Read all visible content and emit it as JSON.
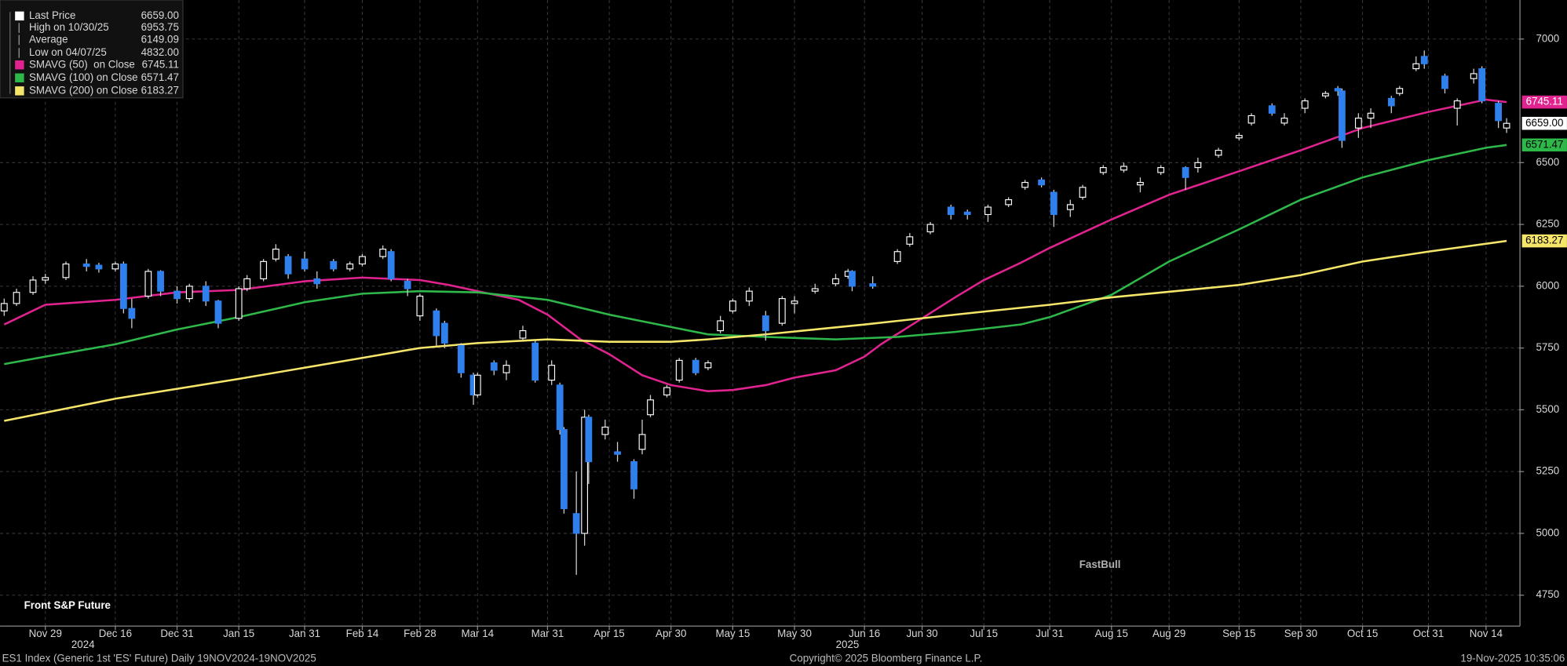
{
  "chart_data": {
    "type": "candlestick",
    "title": "Front S&P Future",
    "xlim": [
      "2024-11-18",
      "2025-11-22"
    ],
    "xticks": [
      {
        "value": "2024-11-29",
        "label": "Nov 29"
      },
      {
        "value": "2024-12-16",
        "label": "Dec 16"
      },
      {
        "value": "2024-12-31",
        "label": "Dec 31"
      },
      {
        "value": "2025-01-15",
        "label": "Jan 15"
      },
      {
        "value": "2025-01-31",
        "label": "Jan 31"
      },
      {
        "value": "2025-02-14",
        "label": "Feb 14"
      },
      {
        "value": "2025-02-28",
        "label": "Feb 28"
      },
      {
        "value": "2025-03-14",
        "label": "Mar 14"
      },
      {
        "value": "2025-03-31",
        "label": "Mar 31"
      },
      {
        "value": "2025-04-15",
        "label": "Apr 15"
      },
      {
        "value": "2025-04-30",
        "label": "Apr 30"
      },
      {
        "value": "2025-05-15",
        "label": "May 15"
      },
      {
        "value": "2025-05-30",
        "label": "May 30"
      },
      {
        "value": "2025-06-16",
        "label": "Jun 16"
      },
      {
        "value": "2025-06-30",
        "label": "Jun 30"
      },
      {
        "value": "2025-07-15",
        "label": "Jul 15"
      },
      {
        "value": "2025-07-31",
        "label": "Jul 31"
      },
      {
        "value": "2025-08-15",
        "label": "Aug 15"
      },
      {
        "value": "2025-08-29",
        "label": "Aug 29"
      },
      {
        "value": "2025-09-15",
        "label": "Sep 15"
      },
      {
        "value": "2025-09-30",
        "label": "Sep 30"
      },
      {
        "value": "2025-10-15",
        "label": "Oct 15"
      },
      {
        "value": "2025-10-31",
        "label": "Oct 31"
      },
      {
        "value": "2025-11-14",
        "label": "Nov 14"
      }
    ],
    "years": [
      "2024",
      "2025"
    ],
    "ylim": [
      4625,
      7158
    ],
    "yticks": [
      4750,
      5000,
      5250,
      5500,
      5750,
      6000,
      6250,
      6500,
      7000
    ],
    "grid": true,
    "up_color": "#ffffff",
    "down_color": "#2f80ed",
    "x": [
      "2024-11-19",
      "2024-11-22",
      "2024-11-26",
      "2024-11-29",
      "2024-12-04",
      "2024-12-09",
      "2024-12-12",
      "2024-12-16",
      "2024-12-18",
      "2024-12-20",
      "2024-12-24",
      "2024-12-27",
      "2024-12-31",
      "2025-01-03",
      "2025-01-07",
      "2025-01-10",
      "2025-01-15",
      "2025-01-17",
      "2025-01-21",
      "2025-01-24",
      "2025-01-27",
      "2025-01-31",
      "2025-02-03",
      "2025-02-07",
      "2025-02-11",
      "2025-02-14",
      "2025-02-19",
      "2025-02-21",
      "2025-02-25",
      "2025-02-28",
      "2025-03-04",
      "2025-03-06",
      "2025-03-10",
      "2025-03-13",
      "2025-03-14",
      "2025-03-18",
      "2025-03-21",
      "2025-03-25",
      "2025-03-28",
      "2025-04-01",
      "2025-04-03",
      "2025-04-04",
      "2025-04-07",
      "2025-04-09",
      "2025-04-10",
      "2025-04-14",
      "2025-04-17",
      "2025-04-21",
      "2025-04-23",
      "2025-04-25",
      "2025-04-29",
      "2025-05-02",
      "2025-05-06",
      "2025-05-09",
      "2025-05-12",
      "2025-05-15",
      "2025-05-19",
      "2025-05-23",
      "2025-05-27",
      "2025-05-30",
      "2025-06-04",
      "2025-06-09",
      "2025-06-12",
      "2025-06-13",
      "2025-06-18",
      "2025-06-24",
      "2025-06-27",
      "2025-07-02",
      "2025-07-07",
      "2025-07-11",
      "2025-07-16",
      "2025-07-21",
      "2025-07-25",
      "2025-07-29",
      "2025-08-01",
      "2025-08-05",
      "2025-08-08",
      "2025-08-13",
      "2025-08-18",
      "2025-08-22",
      "2025-08-27",
      "2025-09-02",
      "2025-09-05",
      "2025-09-10",
      "2025-09-15",
      "2025-09-18",
      "2025-09-23",
      "2025-09-26",
      "2025-10-01",
      "2025-10-06",
      "2025-10-09",
      "2025-10-10",
      "2025-10-14",
      "2025-10-17",
      "2025-10-22",
      "2025-10-24",
      "2025-10-28",
      "2025-10-30",
      "2025-11-04",
      "2025-11-07",
      "2025-11-11",
      "2025-11-13",
      "2025-11-17",
      "2025-11-19"
    ],
    "open": [
      5900,
      5930,
      5975,
      6025,
      6035,
      6090,
      6085,
      6070,
      6090,
      5910,
      5960,
      6060,
      5980,
      5950,
      6000,
      5940,
      5870,
      5990,
      6030,
      6110,
      6120,
      6110,
      6030,
      6100,
      6070,
      6090,
      6120,
      6140,
      6020,
      5880,
      5900,
      5850,
      5760,
      5640,
      5560,
      5690,
      5650,
      5790,
      5770,
      5620,
      5600,
      5420,
      5080,
      5000,
      5470,
      5400,
      5330,
      5290,
      5340,
      5480,
      5560,
      5620,
      5700,
      5670,
      5820,
      5900,
      5940,
      5880,
      5850,
      5930,
      5980,
      6010,
      6040,
      6060,
      6010,
      6100,
      6170,
      6220,
      6320,
      6300,
      6290,
      6330,
      6400,
      6430,
      6380,
      6310,
      6360,
      6460,
      6470,
      6410,
      6460,
      6480,
      6480,
      6530,
      6600,
      6660,
      6730,
      6660,
      6720,
      6770,
      6800,
      6790,
      6640,
      6680,
      6760,
      6780,
      6880,
      6930,
      6850,
      6720,
      6840,
      6880,
      6740,
      6640
    ],
    "high": [
      5950,
      5990,
      6040,
      6050,
      6100,
      6110,
      6095,
      6100,
      6100,
      5950,
      6070,
      6065,
      6000,
      6010,
      6020,
      5945,
      6000,
      6045,
      6110,
      6170,
      6130,
      6140,
      6060,
      6110,
      6100,
      6130,
      6165,
      6150,
      6030,
      5970,
      5910,
      5860,
      5770,
      5650,
      5650,
      5700,
      5700,
      5840,
      5780,
      5700,
      5610,
      5430,
      5250,
      5500,
      5480,
      5460,
      5370,
      5300,
      5460,
      5560,
      5600,
      5710,
      5710,
      5700,
      5880,
      5950,
      5995,
      5900,
      5960,
      5960,
      6010,
      6050,
      6070,
      6065,
      6040,
      6150,
      6215,
      6260,
      6330,
      6310,
      6330,
      6360,
      6430,
      6440,
      6390,
      6350,
      6410,
      6490,
      6500,
      6440,
      6490,
      6485,
      6520,
      6560,
      6620,
      6700,
      6740,
      6700,
      6760,
      6790,
      6810,
      6800,
      6700,
      6720,
      6770,
      6810,
      6930,
      6953.75,
      6860,
      6760,
      6880,
      6890,
      6750,
      6680
    ],
    "low": [
      5880,
      5920,
      5965,
      6010,
      6025,
      6060,
      6055,
      6060,
      5890,
      5830,
      5950,
      5960,
      5930,
      5935,
      5920,
      5830,
      5860,
      5980,
      6020,
      6100,
      6030,
      6060,
      5990,
      6060,
      6060,
      6080,
      6110,
      6020,
      5960,
      5860,
      5760,
      5750,
      5630,
      5520,
      5550,
      5640,
      5620,
      5780,
      5610,
      5600,
      5400,
      5080,
      4832,
      4950,
      5200,
      5380,
      5290,
      5140,
      5320,
      5470,
      5550,
      5610,
      5640,
      5660,
      5810,
      5890,
      5920,
      5780,
      5840,
      5890,
      5970,
      6000,
      6030,
      5980,
      5990,
      6090,
      6160,
      6210,
      6270,
      6270,
      6260,
      6320,
      6390,
      6400,
      6240,
      6280,
      6350,
      6450,
      6460,
      6380,
      6450,
      6390,
      6460,
      6520,
      6590,
      6650,
      6690,
      6650,
      6700,
      6760,
      6770,
      6560,
      6600,
      6640,
      6700,
      6770,
      6870,
      6880,
      6780,
      6650,
      6820,
      6740,
      6640,
      6620
    ],
    "close": [
      5930,
      5975,
      6025,
      6035,
      6090,
      6080,
      6070,
      6090,
      5910,
      5870,
      6060,
      5980,
      5950,
      6000,
      5940,
      5850,
      5990,
      6030,
      6100,
      6150,
      6050,
      6070,
      6010,
      6070,
      6090,
      6120,
      6150,
      6030,
      5990,
      5960,
      5800,
      5770,
      5650,
      5560,
      5640,
      5660,
      5680,
      5820,
      5620,
      5680,
      5420,
      5100,
      5000,
      5470,
      5290,
      5430,
      5320,
      5180,
      5400,
      5540,
      5590,
      5700,
      5650,
      5690,
      5860,
      5940,
      5980,
      5820,
      5950,
      5940,
      5990,
      6030,
      6060,
      6000,
      6000,
      6140,
      6200,
      6250,
      6290,
      6290,
      6320,
      6350,
      6420,
      6410,
      6290,
      6330,
      6400,
      6480,
      6485,
      6420,
      6480,
      6440,
      6500,
      6550,
      6610,
      6690,
      6700,
      6680,
      6750,
      6780,
      6790,
      6590,
      6680,
      6700,
      6730,
      6800,
      6900,
      6900,
      6800,
      6750,
      6860,
      6750,
      6670,
      6659
    ],
    "lines": [
      {
        "name": "SMAVG (50)  on Close",
        "color": "#e0238f",
        "x": [
          "2024-11-19",
          "2024-11-29",
          "2024-12-16",
          "2024-12-31",
          "2025-01-15",
          "2025-01-31",
          "2025-02-14",
          "2025-02-28",
          "2025-03-07",
          "2025-03-14",
          "2025-03-24",
          "2025-03-31",
          "2025-04-08",
          "2025-04-15",
          "2025-04-23",
          "2025-04-30",
          "2025-05-09",
          "2025-05-15",
          "2025-05-23",
          "2025-05-30",
          "2025-06-09",
          "2025-06-16",
          "2025-06-20",
          "2025-06-30",
          "2025-07-08",
          "2025-07-15",
          "2025-07-24",
          "2025-07-31",
          "2025-08-15",
          "2025-08-29",
          "2025-09-15",
          "2025-09-30",
          "2025-10-15",
          "2025-10-31",
          "2025-11-14",
          "2025-11-19"
        ],
        "values": [
          5845,
          5925,
          5945,
          5975,
          5985,
          6020,
          6035,
          6025,
          6005,
          5980,
          5945,
          5885,
          5785,
          5725,
          5640,
          5600,
          5575,
          5580,
          5600,
          5630,
          5660,
          5715,
          5765,
          5870,
          5955,
          6025,
          6095,
          6155,
          6270,
          6370,
          6465,
          6550,
          6640,
          6705,
          6755,
          6745.11
        ]
      },
      {
        "name": "SMAVG (100) on Close",
        "color": "#2eb84a",
        "x": [
          "2024-11-19",
          "2024-11-29",
          "2024-12-16",
          "2024-12-31",
          "2025-01-15",
          "2025-01-31",
          "2025-02-14",
          "2025-02-28",
          "2025-03-14",
          "2025-03-31",
          "2025-04-15",
          "2025-04-30",
          "2025-05-09",
          "2025-05-23",
          "2025-06-09",
          "2025-06-24",
          "2025-07-08",
          "2025-07-24",
          "2025-07-31",
          "2025-08-15",
          "2025-08-29",
          "2025-09-15",
          "2025-09-30",
          "2025-10-15",
          "2025-10-31",
          "2025-11-14",
          "2025-11-19"
        ],
        "values": [
          5685,
          5715,
          5765,
          5825,
          5875,
          5935,
          5970,
          5980,
          5975,
          5945,
          5885,
          5835,
          5805,
          5795,
          5785,
          5795,
          5815,
          5845,
          5875,
          5965,
          6100,
          6230,
          6350,
          6440,
          6510,
          6560,
          6571.47
        ]
      },
      {
        "name": "SMAVG (200) on Close",
        "color": "#f5e66a",
        "x": [
          "2024-11-19",
          "2024-12-16",
          "2025-01-15",
          "2025-02-14",
          "2025-02-28",
          "2025-03-14",
          "2025-03-31",
          "2025-04-15",
          "2025-04-30",
          "2025-05-09",
          "2025-05-23",
          "2025-06-16",
          "2025-07-08",
          "2025-07-31",
          "2025-08-15",
          "2025-09-15",
          "2025-09-30",
          "2025-10-15",
          "2025-10-31",
          "2025-11-19"
        ],
        "values": [
          5455,
          5545,
          5625,
          5710,
          5750,
          5770,
          5785,
          5775,
          5775,
          5785,
          5805,
          5845,
          5885,
          5925,
          5955,
          6005,
          6045,
          6100,
          6140,
          6183.27
        ]
      }
    ],
    "legend": [
      {
        "name": "Last Price",
        "value": 6659,
        "label": "6659.00"
      },
      {
        "name": "High on 10/30/25",
        "value": 6953.75
      },
      {
        "name": "Average",
        "value": 6149.09
      },
      {
        "name": "Low on 04/07/25",
        "value": 4832,
        "label": "4832.00"
      }
    ],
    "watermark": "FastBull"
  },
  "footer": {
    "left": "ES1 Index (Generic 1st 'ES' Future) Daily 19NOV2024-19NOV2025",
    "center": "Copyright© 2025 Bloomberg Finance L.P.",
    "right": "19-Nov-2025 10:35:06"
  }
}
